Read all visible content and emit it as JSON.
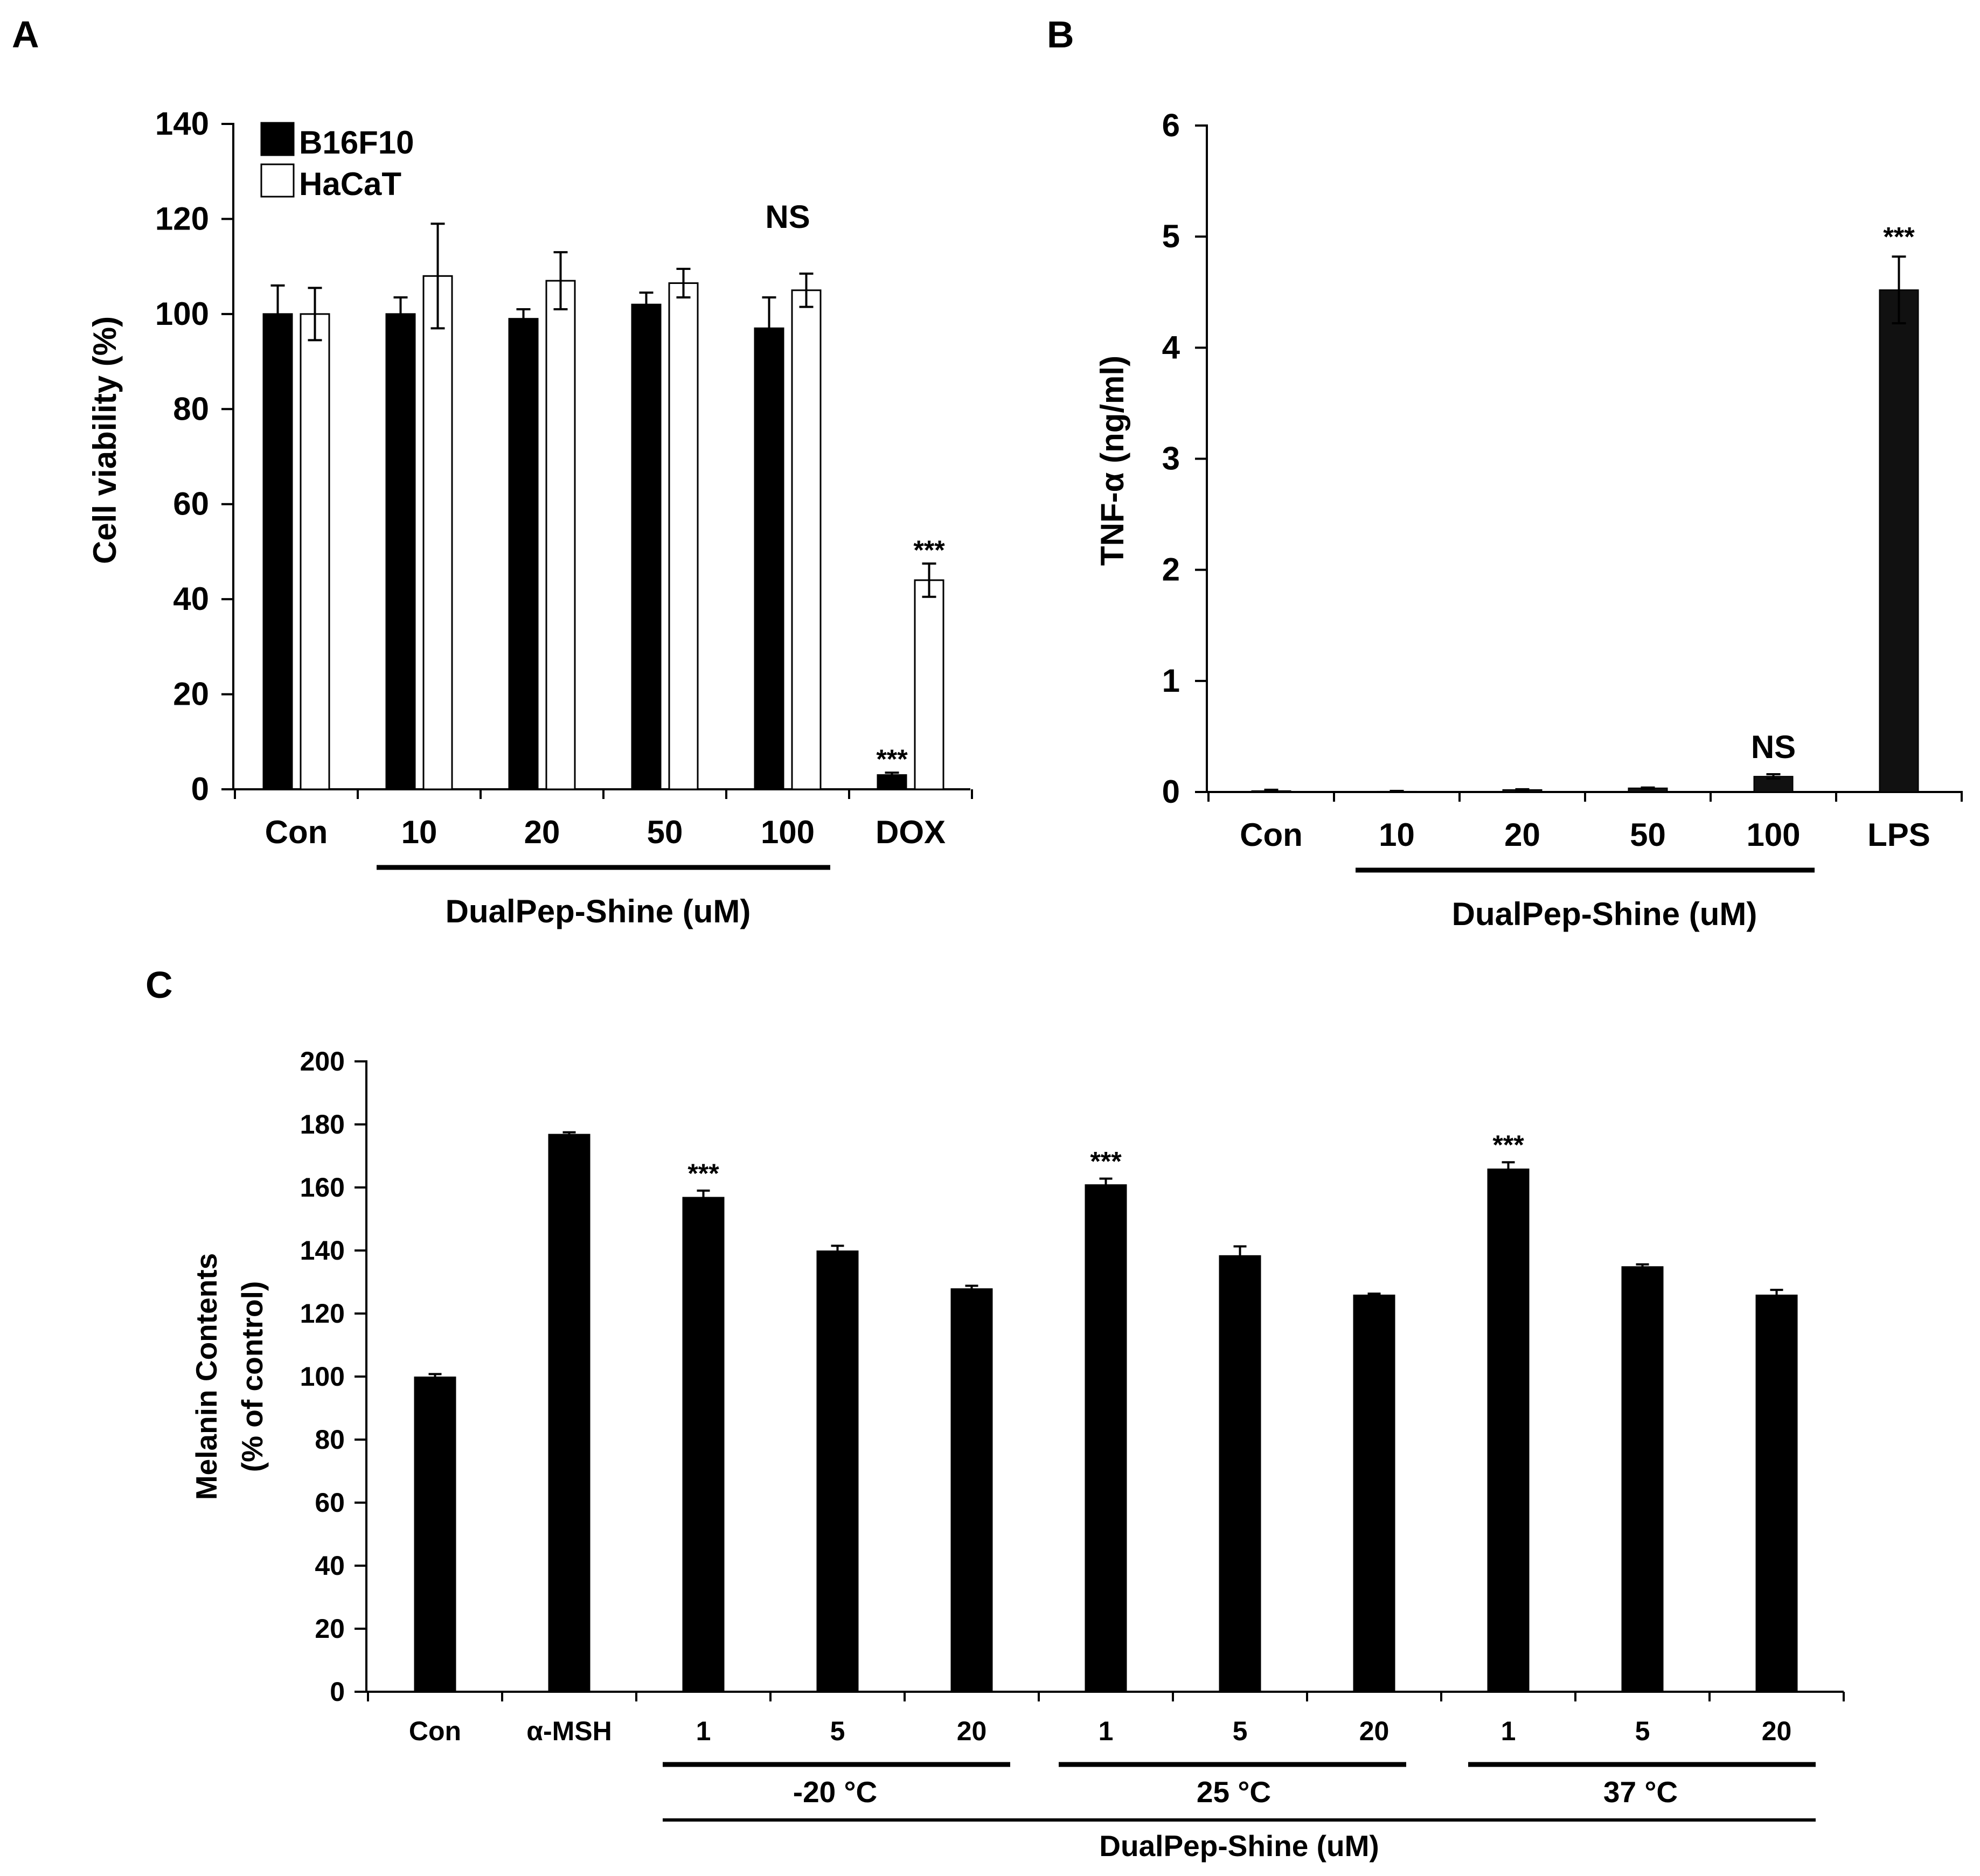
{
  "chart_data": [
    {
      "panel": "A",
      "type": "bar",
      "ylabel": "Cell viability (%)",
      "ylim": [
        0,
        140
      ],
      "yticks": [
        0,
        20,
        40,
        60,
        80,
        100,
        120,
        140
      ],
      "categories": [
        "Con",
        "10",
        "20",
        "50",
        "100",
        "DOX"
      ],
      "group_label": "DualPep-Shine (uM)",
      "legend_position": "top-left",
      "series": [
        {
          "name": "B16F10",
          "color": "#000000",
          "values": [
            100,
            100,
            99,
            102,
            97,
            3
          ],
          "errors": [
            6,
            3.5,
            2,
            2.5,
            6.5,
            0.5
          ]
        },
        {
          "name": "HaCaT",
          "color": "#ffffff",
          "values": [
            100,
            108,
            107,
            106.5,
            105,
            44
          ],
          "errors": [
            5.5,
            11,
            6,
            3,
            3.5,
            3.5
          ]
        }
      ],
      "annotations": [
        {
          "text": "NS",
          "category": "100"
        },
        {
          "text": "***",
          "category": "DOX",
          "series": "B16F10"
        },
        {
          "text": "***",
          "category": "DOX",
          "series": "HaCaT"
        }
      ]
    },
    {
      "panel": "B",
      "type": "bar",
      "ylabel": "TNF-α (ng/ml)",
      "ylim": [
        0,
        6
      ],
      "yticks": [
        0,
        1,
        2,
        3,
        4,
        5,
        6
      ],
      "categories": [
        "Con",
        "10",
        "20",
        "50",
        "100",
        "LPS"
      ],
      "group_label": "DualPep-Shine (uM)",
      "values": [
        0.01,
        0.005,
        0.02,
        0.035,
        0.14,
        4.52
      ],
      "errors": [
        0.01,
        0.005,
        0.005,
        0.005,
        0.02,
        0.3
      ],
      "annotations": [
        {
          "text": "NS",
          "category": "100"
        },
        {
          "text": "***",
          "category": "LPS"
        }
      ]
    },
    {
      "panel": "C",
      "type": "bar",
      "ylabel_line1": "Melanin Contents",
      "ylabel_line2": "(% of control)",
      "ylim": [
        0,
        200
      ],
      "yticks": [
        0,
        20,
        40,
        60,
        80,
        100,
        120,
        140,
        160,
        180,
        200
      ],
      "categories": [
        "Con",
        "α-MSH",
        "1",
        "5",
        "20",
        "1",
        "5",
        "20",
        "1",
        "5",
        "20"
      ],
      "values": [
        100,
        177,
        157,
        140,
        128,
        161,
        138.5,
        126,
        166,
        135,
        126
      ],
      "errors": [
        0.8,
        0.5,
        2,
        1.5,
        0.8,
        1.8,
        2.8,
        0.3,
        2,
        0.6,
        1.5
      ],
      "temperature_groups": [
        "-20 °C",
        "25 °C",
        "37 °C"
      ],
      "group_label": "DualPep-Shine (uM)",
      "annotations": [
        {
          "text": "***",
          "category_index": 2
        },
        {
          "text": "***",
          "category_index": 5
        },
        {
          "text": "***",
          "category_index": 8
        }
      ]
    }
  ],
  "panels": {
    "a": {
      "letter": "A",
      "ylabel": "Cell viability (%)",
      "group_label": "DualPep-Shine (uM)",
      "legend": [
        "B16F10",
        "HaCaT"
      ]
    },
    "b": {
      "letter": "B",
      "ylabel": "TNF-α (ng/ml)",
      "group_label": "DualPep-Shine (uM)"
    },
    "c": {
      "letter": "C",
      "ylabel_line1": "Melanin Contents",
      "ylabel_line2": "(% of control)",
      "temps": [
        "-20 °C",
        "25 °C",
        "37 °C"
      ],
      "group_label": "DualPep-Shine (uM)"
    }
  }
}
